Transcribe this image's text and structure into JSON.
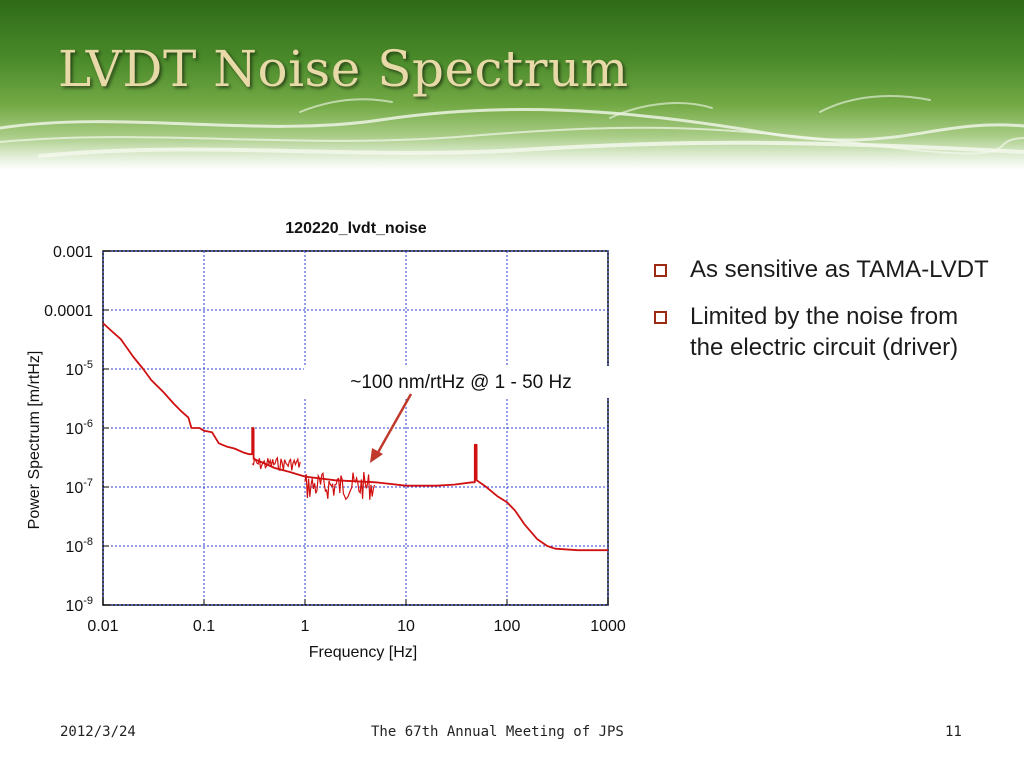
{
  "slide": {
    "title": "LVDT Noise Spectrum",
    "bullets": [
      "As sensitive as TAMA-LVDT",
      "Limited by the noise from the electric circuit (driver)"
    ],
    "footer": {
      "date": "2012/3/24",
      "center": "The 67th Annual Meeting of JPS",
      "page": "11"
    },
    "colors": {
      "title_text": "#e8d9a8",
      "header_green": "#3d7a22",
      "bullet": "#9c2b14",
      "trace": "#d01010",
      "arrow": "#c0392b",
      "grid": "#2b3fd0"
    }
  },
  "chart_data": {
    "type": "line",
    "title": "120220_lvdt_noise",
    "xlabel": "Frequency [Hz]",
    "ylabel": "Power Spectrum [m/rtHz]",
    "xscale": "log",
    "yscale": "log",
    "xlim": [
      0.01,
      1000
    ],
    "ylim": [
      1e-09,
      0.001
    ],
    "grid": true,
    "x_ticks": [
      {
        "value": 0.01,
        "label": "0.01"
      },
      {
        "value": 0.1,
        "label": "0.1"
      },
      {
        "value": 1,
        "label": "1"
      },
      {
        "value": 10,
        "label": "10"
      },
      {
        "value": 100,
        "label": "100"
      },
      {
        "value": 1000,
        "label": "1000"
      }
    ],
    "y_ticks": [
      {
        "value": 0.001,
        "mantissa": "0.001",
        "exp": ""
      },
      {
        "value": 0.0001,
        "mantissa": "0.0001",
        "exp": ""
      },
      {
        "value": 1e-05,
        "mantissa": "10",
        "exp": "-5"
      },
      {
        "value": 1e-06,
        "mantissa": "10",
        "exp": "-6"
      },
      {
        "value": 1e-07,
        "mantissa": "10",
        "exp": "-7"
      },
      {
        "value": 1e-08,
        "mantissa": "10",
        "exp": "-8"
      },
      {
        "value": 1e-09,
        "mantissa": "10",
        "exp": "-9"
      }
    ],
    "series": [
      {
        "color": "#d01010",
        "points": [
          [
            0.01,
            6e-05
          ],
          [
            0.012,
            4.5e-05
          ],
          [
            0.015,
            3.2e-05
          ],
          [
            0.02,
            1.6e-05
          ],
          [
            0.025,
            1e-05
          ],
          [
            0.03,
            6.5e-06
          ],
          [
            0.04,
            4e-06
          ],
          [
            0.05,
            2.6e-06
          ],
          [
            0.06,
            1.9e-06
          ],
          [
            0.07,
            1.5e-06
          ],
          [
            0.075,
            1e-06
          ],
          [
            0.09,
            1e-06
          ],
          [
            0.1,
            9e-07
          ],
          [
            0.12,
            8.5e-07
          ],
          [
            0.14,
            5.5e-07
          ],
          [
            0.17,
            4.8e-07
          ],
          [
            0.2,
            4.5e-07
          ],
          [
            0.25,
            3.8e-07
          ],
          [
            0.28,
            3.6e-07
          ],
          [
            0.3,
            3.6e-07
          ],
          [
            0.3,
            1e-06
          ],
          [
            0.31,
            1e-06
          ],
          [
            0.31,
            3e-07
          ],
          [
            0.4,
            2.5e-07
          ],
          [
            0.5,
            2.1e-07
          ],
          [
            0.7,
            1.8e-07
          ],
          [
            1,
            1.5e-07
          ],
          [
            2,
            1.3e-07
          ],
          [
            5,
            1.2e-07
          ],
          [
            10,
            1.05e-07
          ],
          [
            20,
            1.05e-07
          ],
          [
            30,
            1.1e-07
          ],
          [
            45,
            1.2e-07
          ],
          [
            48,
            1.2e-07
          ],
          [
            48,
            5.2e-07
          ],
          [
            50,
            5.2e-07
          ],
          [
            50,
            1.3e-07
          ],
          [
            60,
            1.05e-07
          ],
          [
            80,
            7e-08
          ],
          [
            100,
            5.5e-08
          ],
          [
            120,
            4e-08
          ],
          [
            150,
            2.3e-08
          ],
          [
            200,
            1.3e-08
          ],
          [
            250,
            1e-08
          ],
          [
            300,
            9e-09
          ],
          [
            500,
            8.5e-09
          ],
          [
            1000,
            8.5e-09
          ]
        ],
        "noise_bands": [
          {
            "x": [
              0.3,
              0.9
            ],
            "y_range": [
              1.9e-07,
              3.2e-07
            ]
          },
          {
            "x": [
              1,
              5
            ],
            "y_range": [
              6e-08,
              1.8e-07
            ]
          }
        ]
      }
    ],
    "annotations": [
      {
        "text": "~100 nm/rtHz @ 1 - 50 Hz",
        "points_to": [
          4,
          2.2e-07
        ]
      }
    ]
  }
}
